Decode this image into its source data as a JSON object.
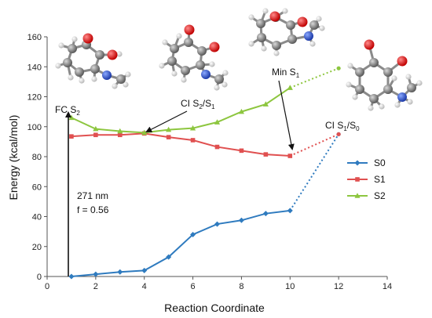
{
  "chart_data": {
    "type": "line",
    "xlabel": "Reaction Coordinate",
    "ylabel": "Energy (kcal/mol)",
    "xlim": [
      0,
      14
    ],
    "ylim": [
      0,
      160
    ],
    "xticks": [
      0,
      2,
      4,
      6,
      8,
      10,
      12,
      14
    ],
    "yticks": [
      0,
      20,
      40,
      60,
      80,
      100,
      120,
      140,
      160
    ],
    "grid": false,
    "legend_position": "right",
    "series": [
      {
        "name": "S0",
        "color": "#2f7bbf",
        "x": [
          1,
          2,
          3,
          4,
          5,
          6,
          7,
          8,
          9,
          10
        ],
        "y": [
          0,
          1.5,
          3,
          4,
          13,
          28,
          35,
          37.5,
          42,
          44
        ],
        "dotted_to": [
          12,
          95
        ]
      },
      {
        "name": "S1",
        "color": "#e05050",
        "x": [
          1,
          2,
          3,
          4,
          5,
          6,
          7,
          8,
          9,
          10
        ],
        "y": [
          93.5,
          94.5,
          94.5,
          95.5,
          93,
          91,
          86.5,
          84,
          81.5,
          80.5
        ],
        "dotted_to": [
          12,
          95
        ]
      },
      {
        "name": "S2",
        "color": "#8dc63f",
        "x": [
          1,
          2,
          3,
          4,
          5,
          6,
          7,
          8,
          9,
          10
        ],
        "y": [
          106,
          98.5,
          97,
          96,
          98,
          99,
          103,
          110,
          115,
          126
        ],
        "dotted_to": [
          12,
          139
        ]
      }
    ],
    "annotations": {
      "fc_label": "FC S",
      "fc_sub": "2",
      "ci_s2s1_label": "CI S",
      "ci_s2s1_sub1": "2",
      "ci_s2s1_slash": "/S",
      "ci_s2s1_sub2": "1",
      "min_label": "Min S",
      "min_sub": "1",
      "ci_s1s0_label": "CI S",
      "ci_s1s0_sub1": "1",
      "ci_s1s0_slash": "/S",
      "ci_s1s0_sub2": "0",
      "wavelength": "271 nm",
      "oscillator": "f = 0.56"
    }
  }
}
